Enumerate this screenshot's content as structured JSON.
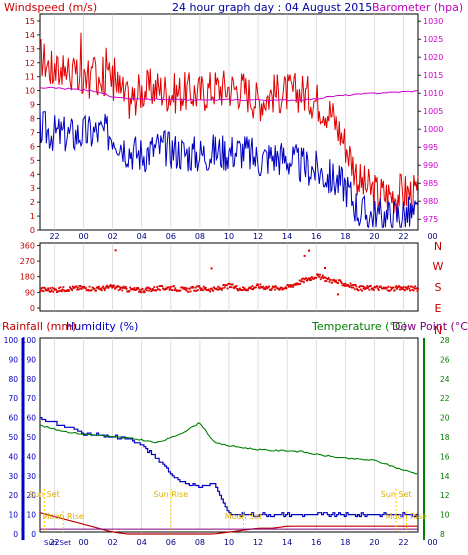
{
  "header": {
    "left_label": "Windspeed (m/s)",
    "title": "24 hour graph day : 04 August 2015",
    "right_label": "Barometer (hpa)"
  },
  "colors": {
    "wind": "#e00000",
    "gust": "#e00000",
    "speed": "#0000c0",
    "baro": "#d000d0",
    "rain": "#c00000",
    "humidity": "#0000c0",
    "temp": "#008000",
    "dew": "#800080",
    "axis_blue": "#0000c0",
    "axis_green": "#008000",
    "axis_red": "#d00000",
    "events": "#ffcc00",
    "grid": "#c8c8c8"
  },
  "chart_data": [
    {
      "type": "line",
      "id": "wind",
      "title": "24 hour graph day : 04 August 2015",
      "xlabel": "",
      "x_ticks": [
        "22",
        "00",
        "02",
        "04",
        "06",
        "08",
        "10",
        "12",
        "14",
        "16",
        "18",
        "20",
        "22",
        "00"
      ],
      "y_left_label": "Windspeed (m/s)",
      "y_left_ticks": [
        0,
        1,
        2,
        3,
        4,
        5,
        6,
        7,
        8,
        9,
        10,
        11,
        12,
        13,
        14,
        15
      ],
      "y_left_lim": [
        0,
        15.5
      ],
      "y_right_label": "Barometer (hpa)",
      "y_right_ticks": [
        975,
        980,
        985,
        990,
        995,
        1000,
        1005,
        1010,
        1015,
        1020,
        1025,
        1030
      ],
      "y_right_lim": [
        972,
        1032
      ],
      "hours": [
        0,
        1,
        2,
        3,
        4,
        5,
        6,
        7,
        8,
        9,
        10,
        11,
        12,
        13,
        14,
        15,
        16,
        17,
        18,
        19,
        20,
        21,
        22,
        23,
        24,
        25,
        26
      ],
      "gust": [
        12.5,
        11.3,
        11.5,
        10.2,
        11.2,
        10.8,
        9.3,
        10.0,
        10.2,
        9.8,
        9.9,
        9.8,
        10.2,
        10.2,
        10.1,
        9.2,
        9.8,
        9.8,
        9.9,
        9.3,
        8.4,
        6.2,
        3.4,
        2.7,
        2.5,
        2.7,
        2.5
      ],
      "speed": [
        7.3,
        6.9,
        6.8,
        6.9,
        7.0,
        6.9,
        5.8,
        5.4,
        5.9,
        5.8,
        5.5,
        5.4,
        5.6,
        5.6,
        5.7,
        5.0,
        5.3,
        5.1,
        4.6,
        4.3,
        3.7,
        3.2,
        1.2,
        1.0,
        0.9,
        1.1,
        1.0
      ],
      "baro": [
        1011.5,
        1011.4,
        1011.2,
        1010.9,
        1010.5,
        1008.8,
        1008.5,
        1008.3,
        1008.3,
        1008.1,
        1008.2,
        1008.1,
        1008.1,
        1008.2,
        1008.1,
        1008.2,
        1008.0,
        1008.1,
        1008.2,
        1008.4,
        1009.1,
        1009.4,
        1009.7,
        1010.0,
        1010.2,
        1010.4,
        1010.6
      ]
    },
    {
      "type": "scatter",
      "id": "direction",
      "y_ticks": [
        0,
        90,
        180,
        270,
        360
      ],
      "y_lim": [
        0,
        360
      ],
      "compass": [
        "N",
        "W",
        "S",
        "E",
        "N"
      ],
      "hours": [
        0,
        1,
        2,
        3,
        4,
        5,
        6,
        7,
        8,
        9,
        10,
        11,
        12,
        13,
        14,
        15,
        16,
        17,
        18,
        19,
        20,
        21,
        22,
        23,
        24,
        25,
        26
      ],
      "values": [
        108,
        104,
        112,
        117,
        110,
        122,
        107,
        103,
        112,
        118,
        104,
        115,
        106,
        128,
        109,
        126,
        115,
        120,
        155,
        185,
        160,
        138,
        113,
        118,
        110,
        115,
        112
      ],
      "outliers": [
        {
          "h": 5.2,
          "v": 332
        },
        {
          "h": 11.8,
          "v": 228
        },
        {
          "h": 18.2,
          "v": 300
        },
        {
          "h": 18.5,
          "v": 330
        },
        {
          "h": 19.6,
          "v": 230
        },
        {
          "h": 20.5,
          "v": 78
        }
      ]
    },
    {
      "type": "line",
      "id": "weather",
      "y_left_label": "Rainfall (mm)",
      "y_left_label2": "Humidity (%)",
      "y_left_ticks": [
        0,
        10,
        20,
        30,
        40,
        50,
        60,
        70,
        80,
        90,
        100
      ],
      "y_left_lim": [
        0,
        100
      ],
      "y_right_label": "Temperature (°C)",
      "y_right_label2": "Dew Point (°C)",
      "y_right_ticks": [
        8,
        10,
        12,
        14,
        16,
        18,
        20,
        22,
        24,
        26,
        28
      ],
      "y_right_lim": [
        8,
        28
      ],
      "hours": [
        0,
        1,
        2,
        3,
        4,
        5,
        6,
        7,
        8,
        9,
        10,
        11,
        12,
        13,
        14,
        15,
        16,
        17,
        18,
        19,
        20,
        21,
        22,
        23,
        24,
        25,
        26
      ],
      "temperature": [
        19.2,
        18.8,
        18.5,
        18.3,
        18.2,
        18.0,
        17.9,
        17.7,
        17.4,
        17.9,
        18.6,
        19.5,
        17.4,
        17.1,
        16.9,
        16.7,
        16.6,
        16.6,
        16.5,
        16.2,
        16.0,
        15.8,
        15.7,
        15.6,
        15.1,
        14.6,
        14.2
      ],
      "humidity": [
        60,
        57,
        55,
        52,
        51,
        50,
        49,
        46,
        39,
        31,
        26,
        24,
        26,
        10,
        10,
        10,
        10,
        10,
        10,
        10,
        10,
        10,
        10,
        10,
        10,
        10,
        10
      ],
      "rainfall": [
        11,
        9,
        7,
        5,
        3,
        1,
        0,
        0,
        0,
        0,
        0,
        0,
        0,
        1,
        2,
        3,
        3,
        4,
        4,
        4,
        4,
        4,
        4,
        4,
        4,
        4,
        4
      ],
      "dewpoint": [
        8.5,
        8.5,
        8.5,
        8.5,
        8.5,
        8.5,
        8.5,
        8.5,
        8.5,
        8.5,
        8.5,
        8.5,
        8.5,
        8.5,
        8.5,
        8.5,
        8.5,
        8.5,
        8.5,
        8.5,
        8.5,
        8.5,
        8.5,
        8.5,
        8.5,
        8.5,
        8.5
      ]
    }
  ],
  "events": [
    {
      "label": "Sun Set",
      "hour": 0.3,
      "row": 0
    },
    {
      "label": "Sun Rise",
      "hour": 9.0,
      "row": 0
    },
    {
      "label": "Sun Set",
      "hour": 24.5,
      "row": 0
    },
    {
      "label": "Moon Rise",
      "hour": 1.6,
      "row": 1
    },
    {
      "label": "Moon Set",
      "hour": 14.0,
      "row": 1
    },
    {
      "label": "Moon Rise",
      "hour": 25.2,
      "row": 1
    }
  ],
  "bottom_axis_label": "Sun Set",
  "compass_side": [
    "N",
    "W",
    "S",
    "E",
    "N"
  ]
}
